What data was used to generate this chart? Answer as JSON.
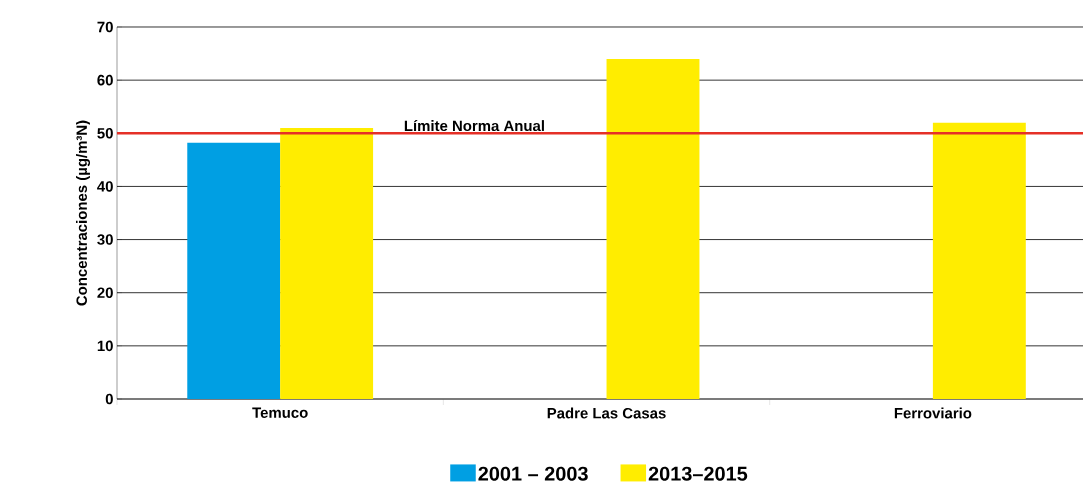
{
  "chart_data": {
    "type": "bar",
    "ylabel": "Concentraciones (µg/m³N)",
    "categories": [
      "Temuco",
      "Padre Las Casas",
      "Ferroviario"
    ],
    "series": [
      {
        "name": "2001 – 2003",
        "color": "#009fe3",
        "values": [
          48.2,
          null,
          null
        ]
      },
      {
        "name": "2013–2015",
        "color": "#ffed00",
        "values": [
          51,
          64,
          52
        ]
      }
    ],
    "ylim": [
      0,
      70
    ],
    "yticks": [
      0,
      10,
      20,
      30,
      40,
      50,
      60,
      70
    ],
    "grid": "y",
    "legend": "bottom",
    "ref_lines": [
      {
        "axis": "y",
        "value": 50,
        "label": "Límite Norma Anual",
        "color": "#e53027"
      }
    ]
  }
}
